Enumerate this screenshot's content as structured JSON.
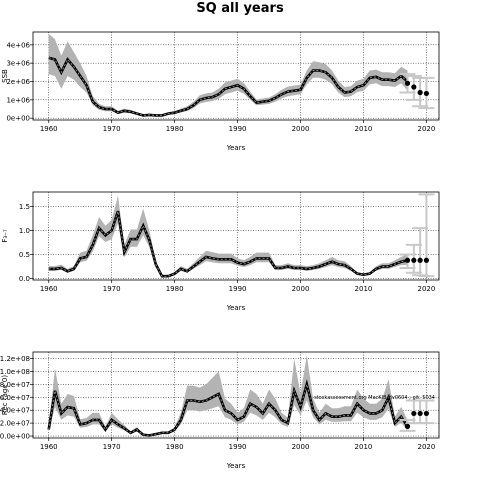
{
  "title": "SQ all years",
  "chart_data": [
    {
      "type": "line",
      "title": "",
      "xlabel": "Years",
      "ylabel": "SSB",
      "xlim": [
        1957.5,
        2022
      ],
      "ylim": [
        -100000,
        4700000
      ],
      "xticks": [
        1960,
        1970,
        1980,
        1990,
        2000,
        2010,
        2020
      ],
      "yticks": [
        0,
        1000000,
        2000000,
        3000000,
        4000000
      ],
      "ytick_labels": [
        "0e+00",
        "1e+06",
        "2e+06",
        "3e+06",
        "4e+06"
      ],
      "grid": true,
      "series": [
        {
          "x": [
            1960,
            1961,
            1962,
            1963,
            1964,
            1965,
            1966,
            1967,
            1968,
            1969,
            1970,
            1971,
            1972,
            1973,
            1974,
            1975,
            1976,
            1977,
            1978,
            1979,
            1980,
            1981,
            1982,
            1983,
            1984,
            1985,
            1986,
            1987,
            1988,
            1989,
            1990,
            1991,
            1992,
            1993,
            1994,
            1995,
            1996,
            1997,
            1998,
            1999,
            2000,
            2001,
            2002,
            2003,
            2004,
            2005,
            2006,
            2007,
            2008,
            2009,
            2010,
            2011,
            2012,
            2013,
            2014,
            2015,
            2016,
            2017
          ],
          "y": [
            3300000,
            3200000,
            2500000,
            3200000,
            2800000,
            2300000,
            1800000,
            900000,
            600000,
            500000,
            500000,
            300000,
            400000,
            350000,
            250000,
            150000,
            180000,
            150000,
            150000,
            250000,
            300000,
            400000,
            500000,
            700000,
            1000000,
            1100000,
            1150000,
            1300000,
            1600000,
            1700000,
            1800000,
            1600000,
            1200000,
            850000,
            900000,
            950000,
            1100000,
            1300000,
            1450000,
            1500000,
            1550000,
            2200000,
            2600000,
            2600000,
            2500000,
            2200000,
            1700000,
            1400000,
            1450000,
            1700000,
            1800000,
            2200000,
            2250000,
            2100000,
            2100000,
            2050000,
            2300000,
            2000000
          ],
          "lower": [
            2400000,
            2300000,
            1600000,
            2300000,
            2100000,
            1700000,
            1400000,
            700000,
            450000,
            380000,
            380000,
            230000,
            300000,
            270000,
            190000,
            110000,
            130000,
            110000,
            110000,
            190000,
            230000,
            310000,
            390000,
            550000,
            800000,
            880000,
            930000,
            1050000,
            1300000,
            1400000,
            1500000,
            1330000,
            1000000,
            700000,
            740000,
            780000,
            900000,
            1080000,
            1200000,
            1250000,
            1300000,
            1850000,
            2200000,
            2200000,
            2100000,
            1850000,
            1400000,
            1150000,
            1200000,
            1420000,
            1500000,
            1850000,
            1900000,
            1750000,
            1750000,
            1700000,
            1900000,
            1500000
          ],
          "upper": [
            4600000,
            4300000,
            3400000,
            4200000,
            3600000,
            3000000,
            2300000,
            1200000,
            780000,
            650000,
            650000,
            400000,
            520000,
            450000,
            330000,
            200000,
            240000,
            200000,
            200000,
            330000,
            390000,
            520000,
            650000,
            900000,
            1250000,
            1350000,
            1400000,
            1600000,
            1950000,
            2050000,
            2150000,
            1900000,
            1450000,
            1020000,
            1080000,
            1130000,
            1300000,
            1550000,
            1720000,
            1780000,
            1820000,
            2600000,
            3100000,
            3050000,
            2950000,
            2600000,
            2050000,
            1700000,
            1750000,
            2050000,
            2150000,
            2600000,
            2650000,
            2500000,
            2500000,
            2450000,
            2800000,
            2600000
          ]
        }
      ],
      "projection": {
        "x": [
          2017,
          2018,
          2019,
          2020
        ],
        "y": [
          1900000,
          1700000,
          1400000,
          1350000
        ],
        "lower": [
          1400000,
          1000000,
          650000,
          550000
        ],
        "upper": [
          2400000,
          2300000,
          2200000,
          2200000
        ]
      }
    },
    {
      "type": "line",
      "title": "",
      "xlabel": "Years",
      "ylabel": "F₃₋₇",
      "xlim": [
        1957.5,
        2022
      ],
      "ylim": [
        -0.03,
        1.8
      ],
      "xticks": [
        1960,
        1970,
        1980,
        1990,
        2000,
        2010,
        2020
      ],
      "yticks": [
        0,
        0.5,
        1,
        1.5
      ],
      "ytick_labels": [
        "0.0",
        "0.5",
        "1.0",
        "1.5"
      ],
      "grid": true,
      "series": [
        {
          "x": [
            1960,
            1961,
            1962,
            1963,
            1964,
            1965,
            1966,
            1967,
            1968,
            1969,
            1970,
            1971,
            1972,
            1973,
            1974,
            1975,
            1976,
            1977,
            1978,
            1979,
            1980,
            1981,
            1982,
            1983,
            1984,
            1985,
            1986,
            1987,
            1988,
            1989,
            1990,
            1991,
            1992,
            1993,
            1994,
            1995,
            1996,
            1997,
            1998,
            1999,
            2000,
            2001,
            2002,
            2003,
            2004,
            2005,
            2006,
            2007,
            2008,
            2009,
            2010,
            2011,
            2012,
            2013,
            2014,
            2015,
            2016,
            2017
          ],
          "y": [
            0.2,
            0.2,
            0.22,
            0.15,
            0.2,
            0.42,
            0.45,
            0.7,
            1.05,
            0.9,
            1.0,
            1.4,
            0.55,
            0.82,
            0.82,
            1.1,
            0.8,
            0.3,
            0.05,
            0.05,
            0.1,
            0.2,
            0.15,
            0.25,
            0.35,
            0.45,
            0.42,
            0.4,
            0.4,
            0.4,
            0.33,
            0.3,
            0.35,
            0.42,
            0.42,
            0.42,
            0.22,
            0.22,
            0.25,
            0.22,
            0.22,
            0.2,
            0.22,
            0.25,
            0.3,
            0.35,
            0.3,
            0.28,
            0.2,
            0.1,
            0.08,
            0.1,
            0.2,
            0.25,
            0.25,
            0.3,
            0.35,
            0.38
          ],
          "lower": [
            0.16,
            0.16,
            0.18,
            0.12,
            0.16,
            0.34,
            0.37,
            0.56,
            0.88,
            0.76,
            0.82,
            1.15,
            0.44,
            0.66,
            0.66,
            0.9,
            0.65,
            0.24,
            0.03,
            0.03,
            0.08,
            0.16,
            0.12,
            0.2,
            0.28,
            0.36,
            0.34,
            0.32,
            0.32,
            0.32,
            0.27,
            0.24,
            0.28,
            0.34,
            0.34,
            0.34,
            0.18,
            0.18,
            0.2,
            0.18,
            0.18,
            0.16,
            0.18,
            0.2,
            0.24,
            0.28,
            0.24,
            0.22,
            0.16,
            0.08,
            0.06,
            0.08,
            0.16,
            0.2,
            0.2,
            0.24,
            0.28,
            0.28
          ],
          "upper": [
            0.26,
            0.26,
            0.29,
            0.2,
            0.26,
            0.54,
            0.58,
            0.9,
            1.28,
            1.1,
            1.22,
            1.72,
            0.7,
            1.02,
            1.02,
            1.45,
            1.0,
            0.38,
            0.08,
            0.08,
            0.13,
            0.26,
            0.2,
            0.32,
            0.45,
            0.58,
            0.55,
            0.52,
            0.52,
            0.52,
            0.42,
            0.38,
            0.45,
            0.54,
            0.54,
            0.54,
            0.28,
            0.28,
            0.32,
            0.28,
            0.28,
            0.26,
            0.28,
            0.32,
            0.38,
            0.45,
            0.38,
            0.36,
            0.26,
            0.13,
            0.1,
            0.13,
            0.26,
            0.32,
            0.32,
            0.38,
            0.45,
            0.52
          ]
        }
      ],
      "projection": {
        "x": [
          2017,
          2018,
          2019,
          2020
        ],
        "y": [
          0.38,
          0.38,
          0.38,
          0.38
        ],
        "lower": [
          0.22,
          0.12,
          0.07,
          0.05
        ],
        "upper": [
          0.5,
          0.7,
          1.05,
          1.75
        ]
      }
    },
    {
      "type": "line",
      "title": "",
      "xlabel": "Years",
      "ylabel": "Rec (age 0)",
      "xlim": [
        1957.5,
        2022
      ],
      "ylim": [
        -3000000,
        130000000
      ],
      "xticks": [
        1960,
        1970,
        1980,
        1990,
        2000,
        2010,
        2020
      ],
      "yticks": [
        0,
        20000000,
        40000000,
        60000000,
        80000000,
        100000000,
        120000000
      ],
      "ytick_labels": [
        "0.0e+00",
        "2.0e+07",
        "4.0e+07",
        "6.0e+07",
        "8.0e+07",
        "1.0e+08",
        "1.2e+08"
      ],
      "grid": true,
      "annotation": "stockassessment.org MacKIB Hv0604 ; git: 5034",
      "series": [
        {
          "x": [
            1960,
            1961,
            1962,
            1963,
            1964,
            1965,
            1966,
            1967,
            1968,
            1969,
            1970,
            1971,
            1972,
            1973,
            1974,
            1975,
            1976,
            1977,
            1978,
            1979,
            1980,
            1981,
            1982,
            1983,
            1984,
            1985,
            1986,
            1987,
            1988,
            1989,
            1990,
            1991,
            1992,
            1993,
            1994,
            1995,
            1996,
            1997,
            1998,
            1999,
            2000,
            2001,
            2002,
            2003,
            2004,
            2005,
            2006,
            2007,
            2008,
            2009,
            2010,
            2011,
            2012,
            2013,
            2014,
            2015,
            2016,
            2017
          ],
          "y": [
            10000000,
            70000000,
            35000000,
            45000000,
            43000000,
            18000000,
            20000000,
            25000000,
            25000000,
            10000000,
            25000000,
            18000000,
            12000000,
            5000000,
            10000000,
            2000000,
            1000000,
            3000000,
            5000000,
            5000000,
            10000000,
            25000000,
            55000000,
            55000000,
            53000000,
            55000000,
            60000000,
            65000000,
            40000000,
            35000000,
            25000000,
            30000000,
            50000000,
            45000000,
            35000000,
            50000000,
            40000000,
            25000000,
            20000000,
            70000000,
            45000000,
            80000000,
            40000000,
            25000000,
            35000000,
            30000000,
            30000000,
            32000000,
            32000000,
            50000000,
            40000000,
            35000000,
            35000000,
            40000000,
            60000000,
            20000000,
            30000000,
            15000000
          ],
          "lower": [
            7000000,
            45000000,
            25000000,
            32000000,
            30000000,
            13000000,
            14000000,
            18000000,
            18000000,
            7000000,
            18000000,
            13000000,
            9000000,
            3500000,
            7000000,
            1000000,
            500000,
            2000000,
            3500000,
            3500000,
            7000000,
            18000000,
            40000000,
            40000000,
            38000000,
            40000000,
            43000000,
            46000000,
            29000000,
            25000000,
            18000000,
            22000000,
            36000000,
            32000000,
            25000000,
            36000000,
            29000000,
            18000000,
            14000000,
            48000000,
            32000000,
            55000000,
            29000000,
            18000000,
            25000000,
            22000000,
            22000000,
            23000000,
            23000000,
            36000000,
            29000000,
            25000000,
            25000000,
            29000000,
            42000000,
            14000000,
            21000000,
            8000000
          ],
          "upper": [
            14000000,
            105000000,
            50000000,
            65000000,
            62000000,
            26000000,
            28000000,
            36000000,
            36000000,
            14000000,
            36000000,
            26000000,
            17000000,
            7000000,
            14000000,
            3000000,
            1500000,
            4500000,
            7000000,
            7000000,
            14000000,
            36000000,
            78000000,
            78000000,
            75000000,
            80000000,
            90000000,
            100000000,
            58000000,
            50000000,
            36000000,
            43000000,
            72000000,
            65000000,
            50000000,
            72000000,
            58000000,
            36000000,
            28000000,
            120000000,
            65000000,
            125000000,
            58000000,
            36000000,
            50000000,
            43000000,
            43000000,
            46000000,
            46000000,
            72000000,
            58000000,
            50000000,
            50000000,
            58000000,
            88000000,
            30000000,
            45000000,
            25000000
          ]
        }
      ],
      "projection": {
        "x": [
          2017,
          2018,
          2019,
          2020
        ],
        "y": [
          15000000,
          35000000,
          35000000,
          35000000
        ],
        "lower": [
          8000000,
          20000000,
          20000000,
          20000000
        ],
        "upper": [
          25000000,
          55000000,
          55000000,
          55000000
        ]
      }
    }
  ]
}
